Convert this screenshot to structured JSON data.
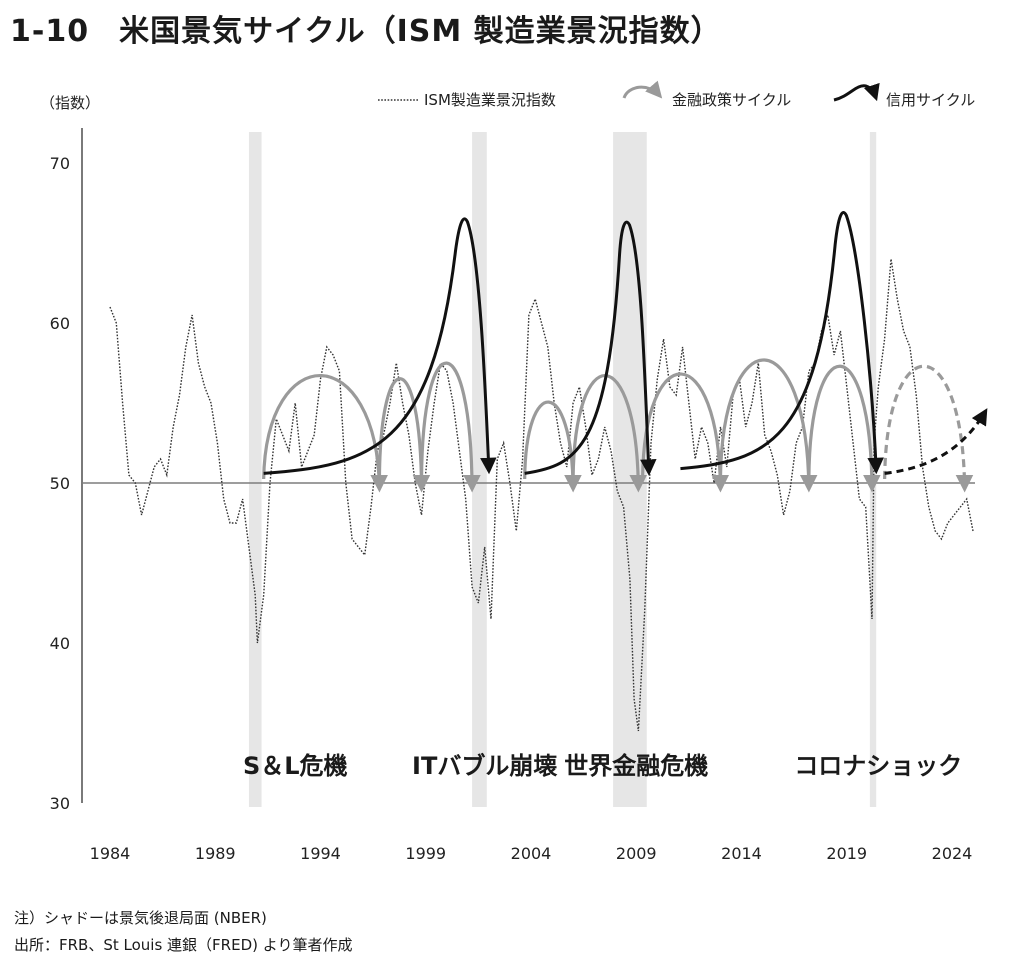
{
  "figure": {
    "number": "1-10",
    "title": "米国景気サイクル（ISM 製造業景況指数）"
  },
  "notes": [
    "注）シャドーは景気後退局面 (NBER)",
    "出所：FRB、St Louis 連銀（FRED) より筆者作成"
  ],
  "chart_data": {
    "type": "line",
    "ylabel": "（指数）",
    "ylim": [
      30,
      72
    ],
    "yticks": [
      30,
      40,
      50,
      60,
      70
    ],
    "xlim": [
      1982.6,
      2026.0
    ],
    "xticks": [
      1984,
      1989,
      1994,
      1999,
      2004,
      2009,
      2014,
      2019,
      2024
    ],
    "reference_line": 50,
    "legend": [
      {
        "label": "ISM製造業景況指数",
        "style": "dotted",
        "color": "#333333"
      },
      {
        "label": "金融政策サイクル",
        "style": "arrow",
        "color": "#9a9a9a"
      },
      {
        "label": "信用サイクル",
        "style": "arrow",
        "color": "#111111"
      }
    ],
    "legend_position": "top-right",
    "recessions": [
      [
        1990.6,
        1991.2
      ],
      [
        2001.2,
        2001.9
      ],
      [
        2007.9,
        2009.5
      ],
      [
        2020.1,
        2020.4
      ]
    ],
    "annotations": [
      {
        "text": "S＆L危機",
        "x": 1992.8,
        "y": 32.3
      },
      {
        "text": "ITバブル崩壊",
        "x": 2001.8,
        "y": 32.3
      },
      {
        "text": "世界金融危機",
        "x": 2009.0,
        "y": 32.3
      },
      {
        "text": "コロナショック",
        "x": 2020.5,
        "y": 32.3
      }
    ],
    "series": [
      {
        "name": "ISM製造業景況指数",
        "x": [
          1984.0,
          1984.3,
          1984.6,
          1984.9,
          1985.2,
          1985.5,
          1985.8,
          1986.1,
          1986.4,
          1986.7,
          1987.0,
          1987.3,
          1987.6,
          1987.9,
          1988.2,
          1988.5,
          1988.8,
          1989.1,
          1989.4,
          1989.7,
          1990.0,
          1990.3,
          1990.6,
          1990.9,
          1991.0,
          1991.3,
          1991.6,
          1991.9,
          1992.2,
          1992.5,
          1992.8,
          1993.1,
          1993.4,
          1993.7,
          1994.0,
          1994.3,
          1994.6,
          1994.9,
          1995.2,
          1995.5,
          1995.8,
          1996.1,
          1996.4,
          1996.7,
          1997.0,
          1997.3,
          1997.6,
          1997.9,
          1998.2,
          1998.5,
          1998.8,
          1999.1,
          1999.4,
          1999.7,
          2000.0,
          2000.3,
          2000.6,
          2000.9,
          2001.2,
          2001.5,
          2001.8,
          2002.1,
          2002.4,
          2002.7,
          2003.0,
          2003.3,
          2003.6,
          2003.9,
          2004.2,
          2004.5,
          2004.8,
          2005.1,
          2005.4,
          2005.7,
          2006.0,
          2006.3,
          2006.6,
          2006.9,
          2007.2,
          2007.5,
          2007.8,
          2008.1,
          2008.4,
          2008.7,
          2008.9,
          2009.1,
          2009.4,
          2009.7,
          2010.0,
          2010.3,
          2010.6,
          2010.9,
          2011.2,
          2011.5,
          2011.8,
          2012.1,
          2012.4,
          2012.7,
          2013.0,
          2013.3,
          2013.6,
          2013.9,
          2014.2,
          2014.5,
          2014.8,
          2015.1,
          2015.4,
          2015.7,
          2016.0,
          2016.3,
          2016.6,
          2016.9,
          2017.2,
          2017.5,
          2017.8,
          2018.1,
          2018.4,
          2018.7,
          2019.0,
          2019.3,
          2019.6,
          2019.9,
          2020.2,
          2020.3,
          2020.5,
          2020.8,
          2021.1,
          2021.4,
          2021.7,
          2022.0,
          2022.3,
          2022.6,
          2022.9,
          2023.2,
          2023.5,
          2023.8,
          2024.1,
          2024.4,
          2024.7,
          2025.0
        ],
        "y": [
          61.0,
          60.0,
          55.0,
          50.5,
          50.0,
          48.0,
          49.5,
          51.0,
          51.5,
          50.5,
          53.5,
          55.5,
          58.5,
          60.5,
          57.5,
          56.0,
          55.0,
          52.5,
          49.0,
          47.5,
          47.5,
          49.0,
          46.0,
          43.0,
          40.0,
          43.0,
          50.0,
          54.0,
          53.0,
          52.0,
          55.0,
          51.0,
          52.0,
          53.0,
          56.5,
          58.5,
          58.0,
          57.0,
          50.0,
          46.5,
          46.0,
          45.5,
          48.5,
          52.0,
          53.0,
          55.0,
          57.5,
          55.0,
          53.0,
          50.0,
          48.0,
          52.0,
          55.0,
          57.5,
          57.0,
          55.0,
          52.0,
          49.0,
          43.5,
          42.5,
          46.0,
          41.5,
          51.5,
          52.5,
          50.0,
          47.0,
          51.5,
          60.5,
          61.5,
          60.0,
          58.5,
          55.0,
          52.5,
          51.0,
          55.0,
          56.0,
          53.5,
          50.5,
          51.5,
          53.5,
          52.0,
          49.5,
          48.5,
          44.0,
          36.5,
          34.5,
          42.0,
          52.5,
          56.5,
          59.0,
          56.0,
          55.5,
          58.5,
          55.0,
          51.5,
          53.5,
          52.5,
          50.0,
          53.5,
          51.0,
          55.5,
          56.5,
          53.5,
          55.0,
          57.5,
          53.0,
          52.0,
          50.5,
          48.0,
          49.5,
          52.5,
          53.5,
          57.0,
          57.5,
          59.5,
          60.5,
          58.0,
          59.5,
          56.0,
          52.5,
          49.0,
          48.5,
          41.5,
          52.5,
          56.0,
          59.0,
          64.0,
          61.5,
          59.5,
          58.5,
          55.5,
          51.0,
          48.5,
          47.0,
          46.5,
          47.5,
          48.0,
          48.5,
          49.0,
          47.0
        ]
      }
    ],
    "monetary_policy_arcs": [
      {
        "from": 1991.3,
        "to": 1996.8,
        "peak_y": 56.9
      },
      {
        "from": 1996.8,
        "to": 1998.8,
        "peak_y": 56.7
      },
      {
        "from": 1998.8,
        "to": 2001.2,
        "peak_y": 57.7
      },
      {
        "from": 2003.7,
        "to": 2006.0,
        "peak_y": 55.2
      },
      {
        "from": 2006.0,
        "to": 2009.1,
        "peak_y": 56.9
      },
      {
        "from": 2009.3,
        "to": 2013.0,
        "peak_y": 57.0
      },
      {
        "from": 2013.0,
        "to": 2017.2,
        "peak_y": 57.9
      },
      {
        "from": 2017.2,
        "to": 2020.2,
        "peak_y": 57.5
      },
      {
        "from": 2020.8,
        "to": 2024.6,
        "peak_y": 57.5,
        "dashed": true
      }
    ],
    "credit_cycle_arcs": [
      {
        "start": [
          1991.3,
          50.6
        ],
        "peak": [
          2000.6,
          66.7
        ],
        "end": [
          2002.0,
          51.0
        ]
      },
      {
        "start": [
          2003.7,
          50.6
        ],
        "peak": [
          2008.3,
          66.5
        ],
        "end": [
          2009.6,
          50.9
        ]
      },
      {
        "start": [
          2011.1,
          50.9
        ],
        "peak": [
          2018.6,
          67.1
        ],
        "end": [
          2020.4,
          51.0
        ]
      },
      {
        "start": [
          2020.8,
          50.6
        ],
        "end": [
          2025.6,
          54.5
        ],
        "dashed": true
      }
    ]
  }
}
